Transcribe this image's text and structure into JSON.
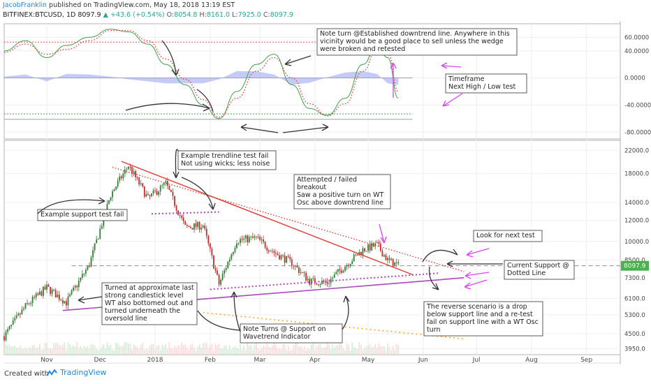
{
  "header": {
    "author": "JacobFranklin",
    "published_text": " published on TradingView.com, May 18, 2018 13:19 EST",
    "symbol": "BITFINEX:BTCUSD, 1D",
    "last": "8097.9",
    "change": "+43.6 (+0.54%)",
    "o_label": "O:",
    "o_value": "8054.8",
    "h_label": "H:",
    "h_value": "8161.0",
    "l_label": "L:",
    "l_value": "7925.0",
    "c_label": "C:",
    "c_value": "8097.9"
  },
  "footer": {
    "created_with": "Created with",
    "brand": "TradingView"
  },
  "colors": {
    "up": "#26a69a",
    "down": "#ef5350",
    "bull_candle": "#2e7d32",
    "bear_candle": "#c62828",
    "trend_red": "#e53935",
    "support_purple": "#ab47bc",
    "orange_dots": "#ffa726",
    "wt1": "#43a047",
    "wt2": "#e53935",
    "hist": "#9fa8f5",
    "arrow_pink": "#e040fb"
  },
  "chart_data": [
    {
      "type": "line",
      "name": "wavetrend-oscillator",
      "y_ticks": [
        "60.0000",
        "40.0000",
        "0.0000",
        "-40.0000",
        "-80.0000"
      ],
      "y_tick_values": [
        60,
        40,
        0,
        -40,
        -80
      ],
      "ylim": [
        -90,
        80
      ],
      "overbought_level": 53,
      "oversold_level": -53,
      "x": [
        "2017-10-08",
        "2017-10-20",
        "2017-11-01",
        "2017-11-12",
        "2017-11-25",
        "2017-12-07",
        "2017-12-17",
        "2017-12-28",
        "2018-01-07",
        "2018-01-18",
        "2018-01-28",
        "2018-02-06",
        "2018-02-16",
        "2018-02-27",
        "2018-03-09",
        "2018-03-19",
        "2018-03-29",
        "2018-04-08",
        "2018-04-18",
        "2018-04-28",
        "2018-05-06",
        "2018-05-12",
        "2018-05-18"
      ],
      "wt1": [
        40,
        55,
        30,
        48,
        60,
        72,
        68,
        50,
        20,
        -10,
        -40,
        -60,
        -20,
        20,
        35,
        -10,
        -45,
        -55,
        -30,
        20,
        48,
        30,
        -30
      ],
      "wt2": [
        38,
        50,
        35,
        42,
        55,
        70,
        70,
        55,
        28,
        -2,
        -32,
        -58,
        -30,
        10,
        30,
        0,
        -38,
        -56,
        -38,
        10,
        42,
        38,
        -20
      ],
      "histogram": [
        2,
        5,
        -5,
        6,
        5,
        2,
        -2,
        -5,
        -8,
        -8,
        -8,
        -2,
        10,
        10,
        5,
        -10,
        -7,
        1,
        8,
        10,
        6,
        -8,
        -10
      ]
    },
    {
      "type": "candlestick",
      "name": "BITFINEX:BTCUSD, 1D",
      "y_ticks": [
        "22000.0",
        "18000.0",
        "14000.0",
        "12000.0",
        "10000.0",
        "8500.0",
        "7300.0",
        "6100.0",
        "5300.0",
        "4500.0",
        "3950.0"
      ],
      "y_tick_values": [
        22000,
        18000,
        14000,
        12000,
        10000,
        8500,
        7300,
        6100,
        5300,
        4500,
        3950
      ],
      "y_scale": "log",
      "ylim": [
        3750,
        24000
      ],
      "x_ticks": [
        "Nov",
        "Dec",
        "2018",
        "Feb",
        "Mar",
        "Apr",
        "May",
        "Jun",
        "Jul",
        "Aug",
        "Sep"
      ],
      "x_tick_dates": [
        "2017-11-01",
        "2017-12-01",
        "2018-01-01",
        "2018-02-01",
        "2018-03-01",
        "2018-04-01",
        "2018-05-01",
        "2018-06-01",
        "2018-07-01",
        "2018-08-01",
        "2018-09-01"
      ],
      "x_range": [
        "2017-10-08",
        "2018-09-20"
      ],
      "last_price_label": "8097.9",
      "key_points": [
        {
          "date": "2017-10-08",
          "close": 4400
        },
        {
          "date": "2017-10-20",
          "close": 5700
        },
        {
          "date": "2017-11-01",
          "close": 6700
        },
        {
          "date": "2017-11-12",
          "close": 5900
        },
        {
          "date": "2017-11-25",
          "close": 8200
        },
        {
          "date": "2017-12-07",
          "close": 15000
        },
        {
          "date": "2017-12-17",
          "close": 19300
        },
        {
          "date": "2017-12-28",
          "close": 14500
        },
        {
          "date": "2018-01-07",
          "close": 16500
        },
        {
          "date": "2018-01-18",
          "close": 11300
        },
        {
          "date": "2018-01-28",
          "close": 11500
        },
        {
          "date": "2018-02-06",
          "close": 6900
        },
        {
          "date": "2018-02-16",
          "close": 10100
        },
        {
          "date": "2018-02-27",
          "close": 10300
        },
        {
          "date": "2018-03-09",
          "close": 9100
        },
        {
          "date": "2018-03-19",
          "close": 8300
        },
        {
          "date": "2018-03-29",
          "close": 7100
        },
        {
          "date": "2018-04-08",
          "close": 7000
        },
        {
          "date": "2018-04-18",
          "close": 8100
        },
        {
          "date": "2018-04-28",
          "close": 9300
        },
        {
          "date": "2018-05-06",
          "close": 9700
        },
        {
          "date": "2018-05-12",
          "close": 8500
        },
        {
          "date": "2018-05-18",
          "close": 8097.9
        }
      ],
      "lines": {
        "downtrend_solid": [
          {
            "date": "2017-12-13",
            "price": 20000
          },
          {
            "date": "2018-05-26",
            "price": 7500
          }
        ],
        "downtrend_dotted": [
          {
            "date": "2017-12-08",
            "price": 19000
          },
          {
            "date": "2018-06-24",
            "price": 7700
          }
        ],
        "support_solid": [
          {
            "date": "2017-11-10",
            "price": 5500
          },
          {
            "date": "2018-06-24",
            "price": 7300
          }
        ],
        "support_dotted": [
          {
            "date": "2018-02-01",
            "price": 6600
          },
          {
            "date": "2018-06-10",
            "price": 7600
          }
        ],
        "support_test_dotted": [
          {
            "date": "2017-12-30",
            "price": 12700
          },
          {
            "date": "2018-02-06",
            "price": 12900
          }
        ],
        "orange_dotted": [
          {
            "date": "2018-01-28",
            "price": 5400
          },
          {
            "date": "2018-06-24",
            "price": 4300
          }
        ],
        "current_support_dashed": [
          {
            "date": "2017-11-15",
            "price": 8097.9
          },
          {
            "date": "2018-09-20",
            "price": 8097.9
          }
        ]
      }
    }
  ],
  "annotations": {
    "osc_note": [
      "Note turn @Established downtrend line.  Anywhere in this",
      "vicinity would be a good place to sell unless the wedge",
      "were broken and retested"
    ],
    "timeframe": [
      "Timeframe",
      "Next High / Low test"
    ],
    "trendline_fail": [
      "Example trendline test fail",
      "Not using wicks; less noise"
    ],
    "support_fail": [
      "Example support test fail"
    ],
    "attempted": [
      "Attempted / failed",
      "breakout",
      "Saw a positive turn on WT",
      "Osc above downtrend line"
    ],
    "look_next": [
      "Look for next test"
    ],
    "current_support": [
      "Current Support @",
      "Dotted Line"
    ],
    "turned": [
      "Turned at approximate last",
      "strong candlestick level",
      "WT also bottomed out and",
      "turned underneath the",
      "oversold line"
    ],
    "note_turns": [
      "Note Turns @ Support on",
      "Wavetrend Indicator"
    ],
    "reverse": [
      "The reverse scenario is a drop",
      "below support line and a re-test",
      "fail on support line with a WT Osc",
      "turn"
    ]
  }
}
